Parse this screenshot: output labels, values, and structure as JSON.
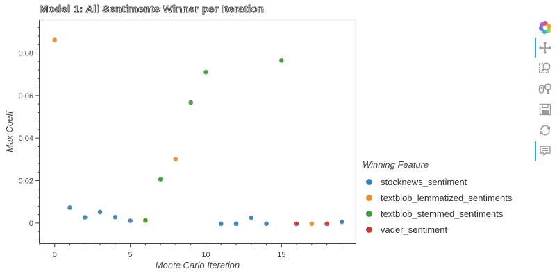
{
  "title": "Model 1: All Sentiments Winner per Iteration",
  "chart_data": {
    "type": "scatter",
    "title": "Model 1: All Sentiments Winner per Iteration",
    "xlabel": "Monte Carlo Iteration",
    "ylabel": "Max Coeff",
    "xlim": [
      -1,
      19.9
    ],
    "ylim": [
      -0.0095,
      0.0955
    ],
    "xticks": [
      0,
      5,
      10,
      15
    ],
    "yticks": [
      0,
      0.02,
      0.04,
      0.06,
      0.08
    ],
    "ytick_labels": [
      "0",
      "0.02",
      "0.04",
      "0.06",
      "0.08"
    ],
    "grid": false,
    "legend_title": "Winning Feature",
    "legend_position": "right",
    "series": [
      {
        "name": "stocknews_sentiment",
        "color": "#3b83b6",
        "points": [
          [
            1,
            0.0073
          ],
          [
            2,
            0.0027
          ],
          [
            3,
            0.0052
          ],
          [
            4,
            0.0028
          ],
          [
            5,
            0.0011
          ],
          [
            11,
            -0.0003
          ],
          [
            12,
            -0.0003
          ],
          [
            13,
            0.0025
          ],
          [
            14,
            -0.0003
          ],
          [
            19,
            0.0006
          ]
        ]
      },
      {
        "name": "textblob_lemmatized_sentiments",
        "color": "#e8912e",
        "points": [
          [
            0,
            0.0862
          ],
          [
            6,
            0.0013
          ],
          [
            8,
            0.0301
          ],
          [
            17,
            -0.0003
          ]
        ]
      },
      {
        "name": "textblob_stemmed_sentiments",
        "color": "#3f9e3a",
        "points": [
          [
            6,
            0.0012
          ],
          [
            7,
            0.0206
          ],
          [
            9,
            0.0567
          ],
          [
            10,
            0.071
          ],
          [
            15,
            0.0765
          ]
        ]
      },
      {
        "name": "vader_sentiment",
        "color": "#c83932",
        "points": [
          [
            16,
            -0.0003
          ],
          [
            18,
            -0.0003
          ]
        ]
      }
    ]
  },
  "toolbar": {
    "tools": [
      {
        "name": "bokeh-logo-icon",
        "active": false
      },
      {
        "name": "pan-icon",
        "active": true
      },
      {
        "name": "box-zoom-icon",
        "active": false
      },
      {
        "name": "wheel-zoom-icon",
        "active": false
      },
      {
        "name": "save-icon",
        "active": false
      },
      {
        "name": "reset-icon",
        "active": false
      },
      {
        "name": "hover-icon",
        "active": true
      }
    ]
  }
}
